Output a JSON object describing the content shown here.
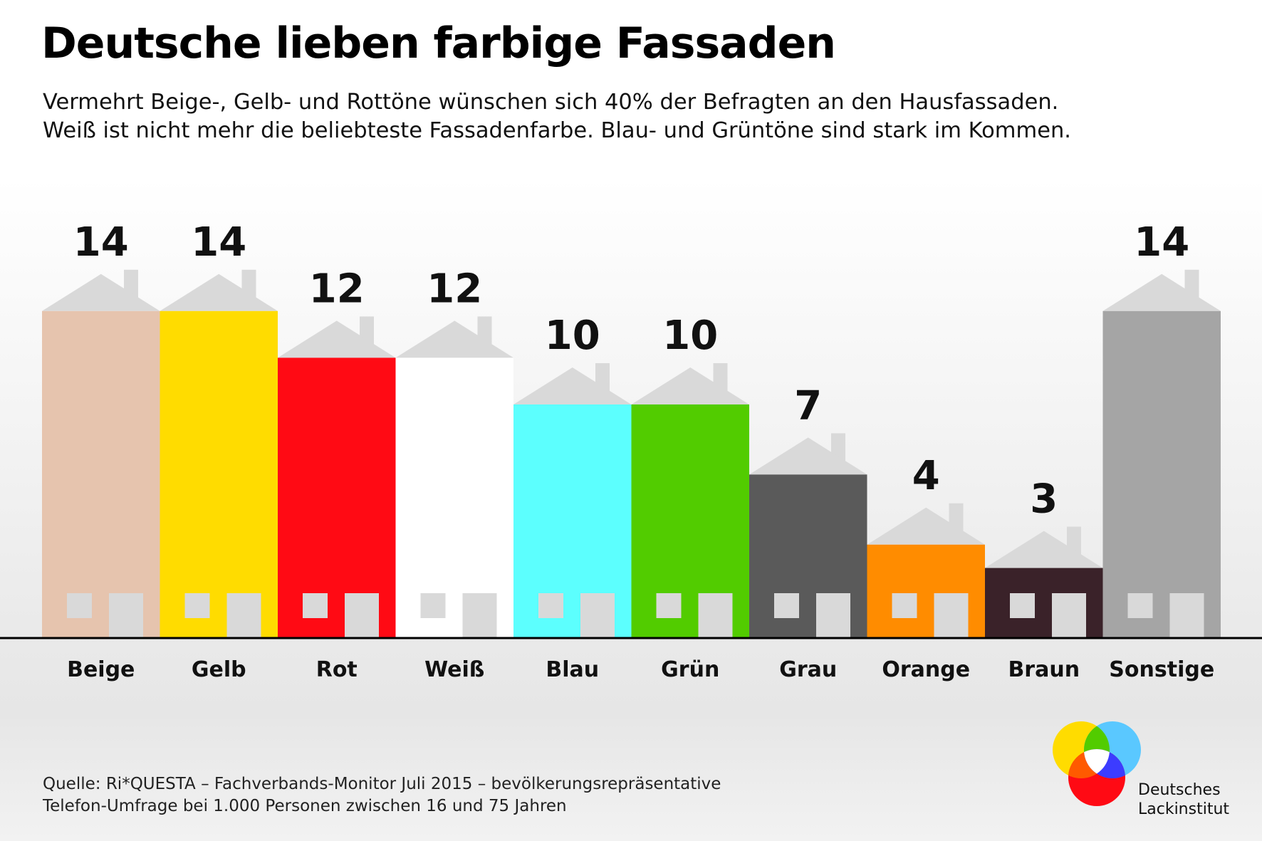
{
  "title": "Deutsche lieben farbige Fassaden",
  "subtitle": {
    "line1": "Vermehrt Beige-, Gelb- und Rottöne wünschen sich 40% der Befragten an den Hausfassaden.",
    "line2": "Weiß ist nicht mehr die beliebteste Fassadenfarbe. Blau- und Grüntöne sind stark im Kommen."
  },
  "chart_data": {
    "type": "bar",
    "categories": [
      "Beige",
      "Gelb",
      "Rot",
      "Weiß",
      "Blau",
      "Grün",
      "Grau",
      "Orange",
      "Braun",
      "Sonstige"
    ],
    "values": [
      14,
      14,
      12,
      12,
      10,
      10,
      7,
      4,
      3,
      14
    ],
    "colors": [
      "#e6c4ae",
      "#ffdc00",
      "#ff0a14",
      "#ffffff",
      "#5cfffe",
      "#52cc00",
      "#5a5a5a",
      "#ff8c00",
      "#3a2229",
      "#a5a5a5"
    ],
    "roof_color": "#d9d9d9",
    "window_color": "#d9d9d9",
    "title": "",
    "xlabel": "",
    "ylabel": ""
  },
  "source": {
    "line1": "Quelle: Ri*QUESTA – Fachverbands-Monitor Juli 2015 – bevölkerungsrepräsentative",
    "line2": "Telefon-Umfrage bei 1.000 Personen zwischen 16 und 75 Jahren"
  },
  "logo": {
    "line1": "Deutsches",
    "line2": "Lackinstitut",
    "colors": {
      "yellow": "#ffdc00",
      "blue": "#5ac8ff",
      "red": "#ff0a14",
      "green": "#52cc00",
      "orange": "#ff5a00",
      "purple": "#3c3cff",
      "center": "#ffffff"
    }
  }
}
